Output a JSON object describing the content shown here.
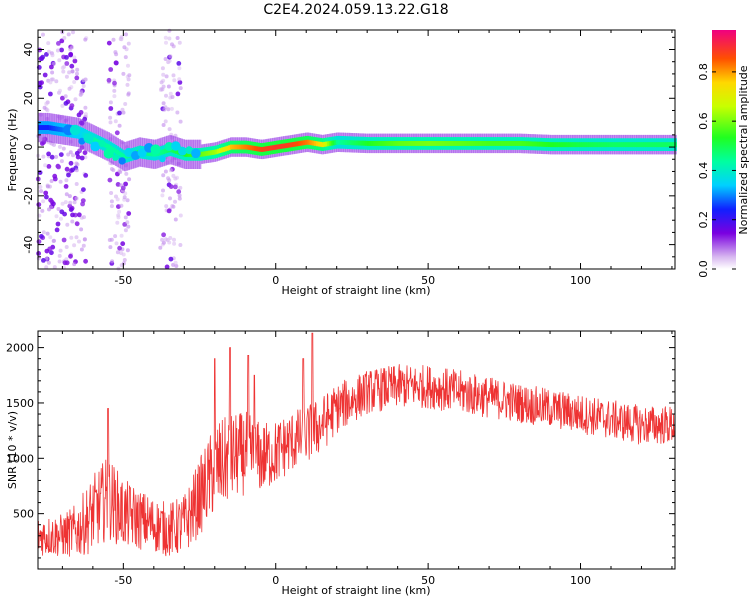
{
  "title": "C2E4.2024.059.13.22.G18",
  "chart_data": [
    {
      "type": "heatmap",
      "xlabel": "Height of straight line (km)",
      "ylabel": "Frequency (Hz)",
      "xlim": [
        -78,
        131
      ],
      "ylim": [
        -50,
        48
      ],
      "x_ticks": [
        -50,
        0,
        50,
        100
      ],
      "y_ticks": [
        -40,
        -20,
        0,
        20,
        40
      ],
      "colorbar": {
        "label": "Normalized spectral amplitude",
        "range": [
          0,
          0.97
        ],
        "ticks": [
          "0.0",
          "0.2",
          "0.4",
          "0.6",
          "0.8"
        ]
      },
      "ridge": {
        "x": [
          -75,
          -65,
          -60,
          -55,
          -50,
          -45,
          -40,
          -35,
          -30,
          -25,
          -20,
          -15,
          -10,
          -5,
          0,
          5,
          10,
          15,
          20,
          30,
          40,
          50,
          60,
          70,
          80,
          90,
          100,
          110,
          120,
          131
        ],
        "freq": [
          8,
          6,
          3,
          0,
          -4,
          -2,
          -3,
          -1,
          -3,
          -3,
          -2,
          0,
          0,
          -1,
          0,
          1,
          2,
          1,
          2,
          1.5,
          1.5,
          1.5,
          1.5,
          1.5,
          1.5,
          1,
          1,
          1,
          1,
          1
        ],
        "amplitude": [
          0.25,
          0.35,
          0.45,
          0.45,
          0.45,
          0.5,
          0.45,
          0.5,
          0.55,
          0.6,
          0.65,
          0.8,
          0.85,
          0.9,
          0.92,
          0.9,
          0.85,
          0.75,
          0.45,
          0.55,
          0.6,
          0.62,
          0.6,
          0.58,
          0.58,
          0.55,
          0.52,
          0.5,
          0.5,
          0.5
        ]
      },
      "noise_zones_x": [
        [
          -78,
          -62
        ],
        [
          -55,
          -48
        ],
        [
          -38,
          -31
        ]
      ]
    },
    {
      "type": "line",
      "xlabel": "Height of straight line (km)",
      "ylabel": "SNR (10 * v/v)",
      "xlim": [
        -78,
        131
      ],
      "ylim": [
        0,
        2150
      ],
      "x_ticks": [
        -50,
        0,
        50,
        100
      ],
      "y_ticks": [
        500,
        1000,
        1500,
        2000
      ],
      "series": [
        {
          "color": "#ee3333",
          "x": [
            -78,
            -70,
            -65,
            -60,
            -55,
            -50,
            -45,
            -40,
            -35,
            -30,
            -25,
            -20,
            -15,
            -10,
            -5,
            0,
            5,
            10,
            15,
            20,
            30,
            40,
            50,
            60,
            70,
            80,
            90,
            100,
            110,
            120,
            131
          ],
          "y": [
            300,
            300,
            350,
            500,
            650,
            500,
            450,
            400,
            350,
            400,
            650,
            900,
            1000,
            1050,
            1000,
            1050,
            1150,
            1200,
            1300,
            1450,
            1600,
            1650,
            1650,
            1600,
            1550,
            1500,
            1450,
            1400,
            1350,
            1300,
            1300
          ],
          "noise": [
            180,
            200,
            250,
            350,
            380,
            320,
            280,
            250,
            250,
            280,
            350,
            420,
            400,
            380,
            330,
            300,
            280,
            280,
            260,
            230,
            200,
            200,
            200,
            200,
            190,
            180,
            180,
            180,
            180,
            180,
            180
          ],
          "spikes": [
            [
              -55,
              1450
            ],
            [
              -20,
              1900
            ],
            [
              -15,
              2000
            ],
            [
              -9,
              1930
            ],
            [
              -7,
              1750
            ],
            [
              12,
              2130
            ],
            [
              9,
              1900
            ]
          ]
        }
      ]
    }
  ]
}
